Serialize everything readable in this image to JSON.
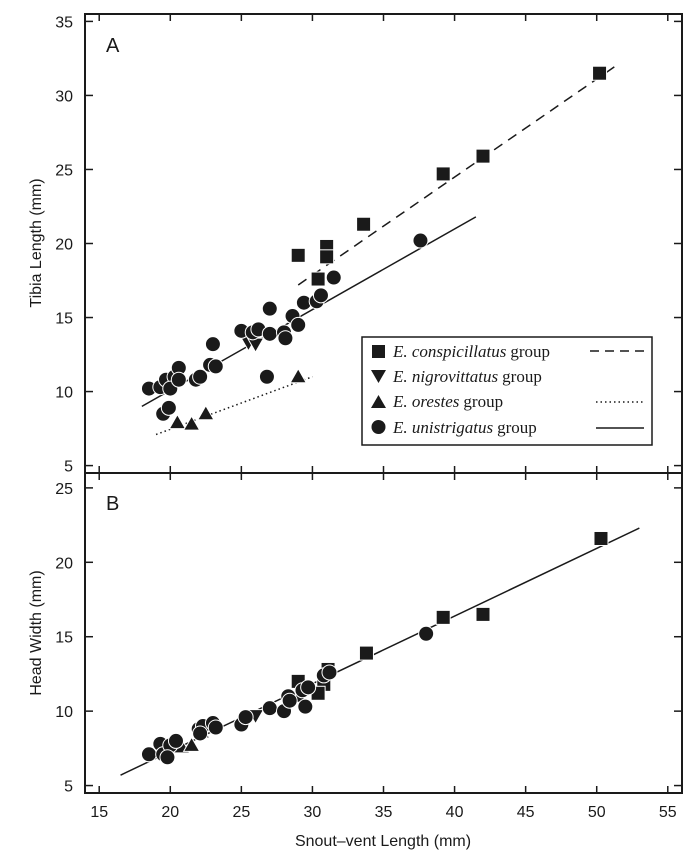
{
  "chart_data": [
    {
      "type": "scatter",
      "panel_label": "A",
      "title": "",
      "xlabel": "Snout–vent Length (mm)",
      "ylabel": "Tibia Length (mm)",
      "xlim": [
        14,
        56
      ],
      "ylim": [
        4.5,
        35.5
      ],
      "xticks": [
        15,
        20,
        25,
        30,
        35,
        40,
        45,
        50,
        55
      ],
      "yticks": [
        5,
        10,
        15,
        20,
        25,
        30,
        35
      ],
      "legend_position": "right",
      "series": [
        {
          "name": "E. conspicillatus group",
          "name_italic": "E. conspicillatus",
          "name_suffix": "group",
          "marker": "square",
          "line": "dashed",
          "points": [
            [
              29.0,
              19.2
            ],
            [
              31.0,
              19.8
            ],
            [
              31.0,
              19.1
            ],
            [
              30.4,
              17.6
            ],
            [
              33.6,
              21.3
            ],
            [
              39.2,
              24.7
            ],
            [
              42.0,
              25.9
            ],
            [
              50.2,
              31.5
            ]
          ],
          "fit_line": [
            [
              29.0,
              17.2
            ],
            [
              51.5,
              32.1
            ]
          ]
        },
        {
          "name": "E. nigrovittatus group",
          "name_italic": "E. nigrovittatus",
          "name_suffix": "group",
          "marker": "triangle-down",
          "line": "none",
          "points": [
            [
              25.5,
              13.3
            ],
            [
              26.0,
              13.2
            ]
          ]
        },
        {
          "name": "E. orestes group",
          "name_italic": "E. orestes",
          "name_suffix": "group",
          "marker": "triangle-up",
          "line": "dotted",
          "points": [
            [
              20.5,
              7.9
            ],
            [
              21.5,
              7.8
            ],
            [
              22.5,
              8.5
            ],
            [
              29.0,
              11.0
            ]
          ],
          "fit_line": [
            [
              19.0,
              7.1
            ],
            [
              30.0,
              11.0
            ]
          ]
        },
        {
          "name": "E. unistrigatus group",
          "name_italic": "E. unistrigatus",
          "name_suffix": "group",
          "marker": "circle",
          "line": "solid",
          "points": [
            [
              18.5,
              10.2
            ],
            [
              19.3,
              10.3
            ],
            [
              19.7,
              10.8
            ],
            [
              20.3,
              11.0
            ],
            [
              20.6,
              11.6
            ],
            [
              20.0,
              10.2
            ],
            [
              19.5,
              8.5
            ],
            [
              19.9,
              8.9
            ],
            [
              20.6,
              10.8
            ],
            [
              21.8,
              10.8
            ],
            [
              22.1,
              11.0
            ],
            [
              22.8,
              11.8
            ],
            [
              23.2,
              11.7
            ],
            [
              23.0,
              13.2
            ],
            [
              25.0,
              14.1
            ],
            [
              25.8,
              14.0
            ],
            [
              26.2,
              14.2
            ],
            [
              27.0,
              15.6
            ],
            [
              27.0,
              13.9
            ],
            [
              28.0,
              14.0
            ],
            [
              28.1,
              13.6
            ],
            [
              28.6,
              15.1
            ],
            [
              29.0,
              14.5
            ],
            [
              29.4,
              16.0
            ],
            [
              30.3,
              16.1
            ],
            [
              30.6,
              16.5
            ],
            [
              31.5,
              17.7
            ],
            [
              26.8,
              11.0
            ],
            [
              37.6,
              20.2
            ]
          ],
          "fit_line": [
            [
              18.0,
              9.0
            ],
            [
              41.5,
              21.8
            ]
          ]
        }
      ]
    },
    {
      "type": "scatter",
      "panel_label": "B",
      "title": "",
      "xlabel": "Snout–vent Length (mm)",
      "ylabel": "Head Width (mm)",
      "xlim": [
        14,
        56
      ],
      "ylim": [
        4.5,
        26
      ],
      "xticks": [
        15,
        20,
        25,
        30,
        35,
        40,
        45,
        50,
        55
      ],
      "yticks": [
        5,
        10,
        15,
        20,
        25
      ],
      "series": [
        {
          "name": "E. conspicillatus group",
          "marker": "square",
          "points": [
            [
              29.0,
              12.0
            ],
            [
              30.8,
              11.8
            ],
            [
              31.1,
              12.8
            ],
            [
              30.4,
              11.2
            ],
            [
              33.8,
              13.9
            ],
            [
              39.2,
              16.3
            ],
            [
              42.0,
              16.5
            ],
            [
              50.3,
              21.6
            ]
          ]
        },
        {
          "name": "E. nigrovittatus group",
          "marker": "triangle-down",
          "points": [
            [
              25.6,
              9.7
            ],
            [
              26.0,
              9.7
            ]
          ]
        },
        {
          "name": "E. orestes group",
          "marker": "triangle-up",
          "points": [
            [
              20.8,
              7.6
            ],
            [
              21.5,
              7.7
            ],
            [
              22.2,
              8.6
            ],
            [
              29.0,
              11.0
            ]
          ]
        },
        {
          "name": "E. unistrigatus group",
          "marker": "circle",
          "points": [
            [
              18.5,
              7.1
            ],
            [
              19.3,
              7.8
            ],
            [
              19.5,
              7.1
            ],
            [
              20.0,
              7.7
            ],
            [
              20.4,
              8.0
            ],
            [
              19.8,
              6.9
            ],
            [
              22.0,
              8.8
            ],
            [
              22.3,
              9.0
            ],
            [
              23.0,
              9.2
            ],
            [
              23.2,
              8.9
            ],
            [
              22.1,
              8.5
            ],
            [
              25.0,
              9.1
            ],
            [
              25.3,
              9.6
            ],
            [
              27.0,
              10.2
            ],
            [
              28.0,
              10.0
            ],
            [
              28.3,
              11.0
            ],
            [
              28.4,
              10.7
            ],
            [
              29.3,
              11.4
            ],
            [
              29.5,
              10.3
            ],
            [
              29.7,
              11.6
            ],
            [
              30.8,
              12.4
            ],
            [
              31.2,
              12.6
            ],
            [
              38.0,
              15.2
            ]
          ],
          "fit_line": [
            [
              16.5,
              5.7
            ],
            [
              53.0,
              22.3
            ]
          ]
        }
      ]
    }
  ]
}
